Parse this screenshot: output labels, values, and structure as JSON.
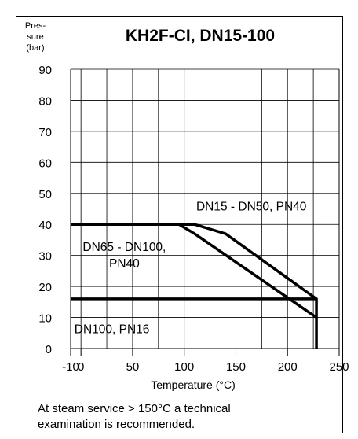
{
  "chart_data": {
    "type": "line",
    "title": "KH2F-CI, DN15-100",
    "ylabel_lines": [
      "Pres-",
      "sure",
      "(bar)"
    ],
    "xlabel": "Temperature (°C)",
    "xlim": [
      -10,
      250
    ],
    "ylim": [
      0,
      90
    ],
    "x_ticks": [
      -10,
      0,
      50,
      100,
      150,
      200,
      250
    ],
    "y_ticks": [
      0,
      10,
      20,
      30,
      40,
      50,
      60,
      70,
      80,
      90
    ],
    "grid": true,
    "series": [
      {
        "name": "DN15 - DN50, PN40",
        "points": [
          [
            -10,
            40
          ],
          [
            110,
            40
          ],
          [
            140,
            37
          ],
          [
            228,
            16
          ],
          [
            228,
            0
          ]
        ]
      },
      {
        "name": "DN65 - DN100, PN40",
        "points": [
          [
            -10,
            40
          ],
          [
            95,
            40
          ],
          [
            110,
            37
          ],
          [
            228,
            10
          ]
        ]
      },
      {
        "name": "DN100, PN16",
        "points": [
          [
            -10,
            16
          ],
          [
            228,
            16
          ]
        ]
      }
    ],
    "annotations": [
      {
        "lines": [
          "DN15 - DN50, PN40"
        ],
        "x": 165,
        "y": 44.5
      },
      {
        "lines": [
          "DN65 - DN100,",
          "PN40"
        ],
        "x": 42,
        "y": 31.5
      },
      {
        "lines": [
          "DN100, PN16"
        ],
        "x": 30,
        "y": 5
      }
    ]
  },
  "footnote": [
    "At steam service > 150°C a technical",
    "examination is recommended."
  ]
}
